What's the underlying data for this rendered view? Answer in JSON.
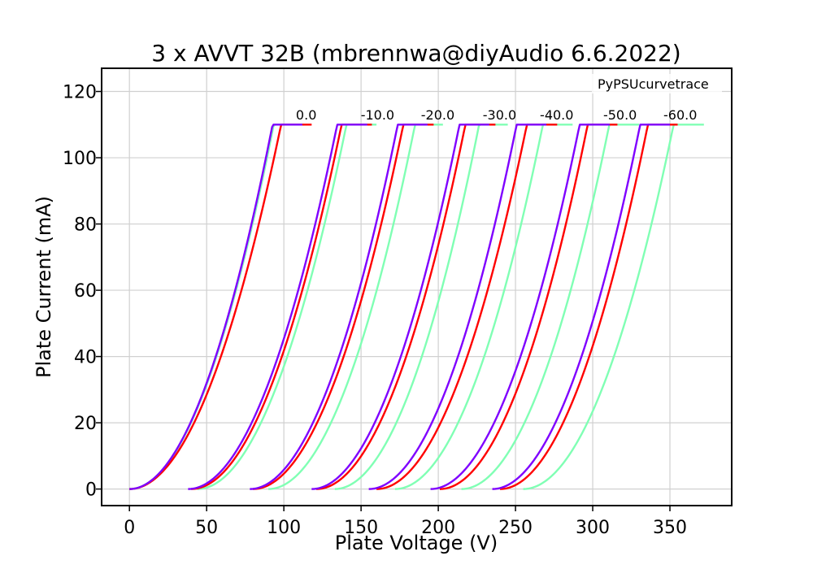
{
  "chart_data": {
    "type": "line",
    "title": "3 x AVVT 32B (mbrennwa@diyAudio 6.6.2022)",
    "xlabel": "Plate Voltage (V)",
    "ylabel": "Plate Current (mA)",
    "xlim": [
      -18,
      390
    ],
    "ylim": [
      -5,
      127
    ],
    "x_ticks": [
      0,
      50,
      100,
      150,
      200,
      250,
      300,
      350
    ],
    "y_ticks": [
      0,
      20,
      40,
      60,
      80,
      100,
      120
    ],
    "grid": true,
    "legend": {
      "text": "PyPSUcurvetrace",
      "placement": "top-right"
    },
    "grid_voltage_labels": [
      "0.0",
      "-10.0",
      "-20.0",
      "-30.0",
      "-40.0",
      "-50.0",
      "-60.0"
    ],
    "colors": {
      "tube1": "#7f00ff",
      "tube2": "#ff0000",
      "tube3": "#80ffb4",
      "grid": "#d0d0d0"
    },
    "tubes": [
      {
        "color": "#7f00ff",
        "curves": [
          {
            "grid": "0.0",
            "start": 0,
            "end": 112,
            "k": 0.0128
          },
          {
            "grid": "-10.0",
            "start": 38,
            "end": 154,
            "k": 0.0118
          },
          {
            "grid": "-20.0",
            "start": 78,
            "end": 193,
            "k": 0.012
          },
          {
            "grid": "-30.0",
            "start": 118,
            "end": 233,
            "k": 0.012
          },
          {
            "grid": "-40.0",
            "start": 155,
            "end": 270,
            "k": 0.012
          },
          {
            "grid": "-50.0",
            "start": 195,
            "end": 311,
            "k": 0.0118
          },
          {
            "grid": "-60.0",
            "start": 235,
            "end": 350,
            "k": 0.012
          }
        ]
      },
      {
        "color": "#ff0000",
        "curves": [
          {
            "grid": "0.0",
            "start": 0,
            "end": 118,
            "k": 0.0114
          },
          {
            "grid": "-10.0",
            "start": 40,
            "end": 157,
            "k": 0.0116
          },
          {
            "grid": "-20.0",
            "start": 80,
            "end": 197,
            "k": 0.0116
          },
          {
            "grid": "-30.0",
            "start": 121,
            "end": 237,
            "k": 0.0118
          },
          {
            "grid": "-40.0",
            "start": 160,
            "end": 277,
            "k": 0.0116
          },
          {
            "grid": "-50.0",
            "start": 201,
            "end": 316,
            "k": 0.012
          },
          {
            "grid": "-60.0",
            "start": 240,
            "end": 355,
            "k": 0.012
          }
        ]
      },
      {
        "color": "#80ffb4",
        "curves": [
          {
            "grid": "0.0",
            "start": 0,
            "end": 113,
            "k": 0.0126
          },
          {
            "grid": "-10.0",
            "start": 44,
            "end": 160,
            "k": 0.0118
          },
          {
            "grid": "-20.0",
            "start": 90,
            "end": 203,
            "k": 0.0122
          },
          {
            "grid": "-30.0",
            "start": 133,
            "end": 245,
            "k": 0.0126
          },
          {
            "grid": "-40.0",
            "start": 172,
            "end": 287,
            "k": 0.012
          },
          {
            "grid": "-50.0",
            "start": 215,
            "end": 330,
            "k": 0.012
          },
          {
            "grid": "-60.0",
            "start": 255,
            "end": 372,
            "k": 0.0116
          }
        ]
      }
    ]
  }
}
